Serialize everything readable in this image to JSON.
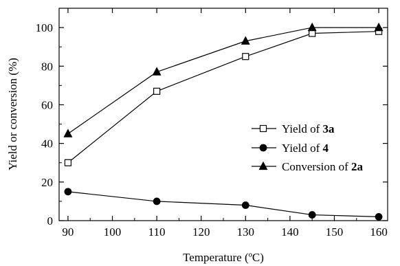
{
  "chart_data": {
    "type": "line",
    "xlabel": "Temperature (ºC)",
    "ylabel": "Yield or conversion (%)",
    "xlim": [
      88,
      162
    ],
    "ylim": [
      0,
      110
    ],
    "xticks": [
      90,
      100,
      110,
      120,
      130,
      140,
      150,
      160
    ],
    "yticks": [
      0,
      20,
      40,
      60,
      80,
      100
    ],
    "grid": false,
    "legend_position": "right-center",
    "series": [
      {
        "name": "Yield of 3a",
        "name_prefix": "Yield of ",
        "name_bold": "3a",
        "marker": "open-square",
        "x": [
          90,
          110,
          130,
          145,
          160
        ],
        "values": [
          30,
          67,
          85,
          97,
          98
        ]
      },
      {
        "name": "Yield of 4",
        "name_prefix": "Yield of ",
        "name_bold": "4",
        "marker": "filled-circle",
        "x": [
          90,
          110,
          130,
          145,
          160
        ],
        "values": [
          15,
          10,
          8,
          3,
          2
        ]
      },
      {
        "name": "Conversion of 2a",
        "name_prefix": "Conversion of ",
        "name_bold": "2a",
        "marker": "filled-triangle",
        "x": [
          90,
          110,
          130,
          145,
          160
        ],
        "values": [
          45,
          77,
          93,
          100,
          100
        ]
      }
    ]
  }
}
